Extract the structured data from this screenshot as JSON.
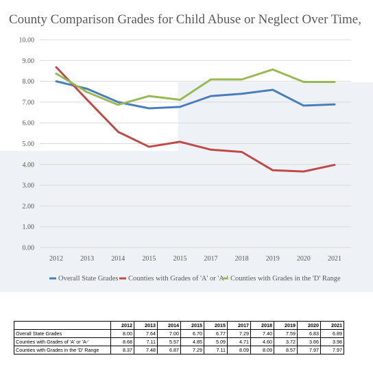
{
  "chart_data": {
    "type": "line",
    "title": "County Comparison Grades for Child Abuse or Neglect Over Time,",
    "categories": [
      "2012",
      "2013",
      "2014",
      "2015",
      "2015",
      "2017",
      "2018",
      "2019",
      "2020",
      "2021"
    ],
    "ylim": [
      0,
      10
    ],
    "yticks": [
      "0.00",
      "1.00",
      "2.00",
      "3.00",
      "4.00",
      "5.00",
      "6.00",
      "7.00",
      "8.00",
      "9.00",
      "10.00"
    ],
    "grid": true,
    "legend_position": "bottom",
    "series": [
      {
        "name": "Overall State Grades",
        "color": "#4a7ebb",
        "values": [
          8.0,
          7.64,
          7.0,
          6.7,
          6.77,
          7.29,
          7.4,
          7.59,
          6.83,
          6.89
        ]
      },
      {
        "name": "Counties with Grades of 'A' or 'A-'",
        "color": "#be4b48",
        "values": [
          8.68,
          7.11,
          5.57,
          4.85,
          5.09,
          4.71,
          4.6,
          3.72,
          3.66,
          3.98
        ]
      },
      {
        "name": "Counties with Grades in the 'D' Range",
        "color": "#98b954",
        "values": [
          8.37,
          7.48,
          6.87,
          7.29,
          7.11,
          8.09,
          8.09,
          8.57,
          7.97,
          7.97
        ]
      }
    ]
  },
  "table": {
    "corner": "",
    "headers": [
      "2012",
      "2013",
      "2014",
      "2015",
      "2015",
      "2017",
      "2018",
      "2019",
      "2020",
      "2021"
    ],
    "rows": [
      {
        "label": "Overall State Grades",
        "values": [
          "8.00",
          "7.64",
          "7.00",
          "6.70",
          "6.77",
          "7.29",
          "7.40",
          "7.59",
          "6.83",
          "6.89"
        ]
      },
      {
        "label": "Counties with Grades of 'A' or 'A-'",
        "values": [
          "8.68",
          "7.11",
          "5.57",
          "4.85",
          "5.09",
          "4.71",
          "4.60",
          "3.72",
          "3.66",
          "3.98"
        ]
      },
      {
        "label": "Counties with Grades in the 'D' Range",
        "values": [
          "8.37",
          "7.48",
          "6.87",
          "7.29",
          "7.11",
          "8.09",
          "8.09",
          "8.57",
          "7.97",
          "7.97"
        ]
      }
    ]
  }
}
